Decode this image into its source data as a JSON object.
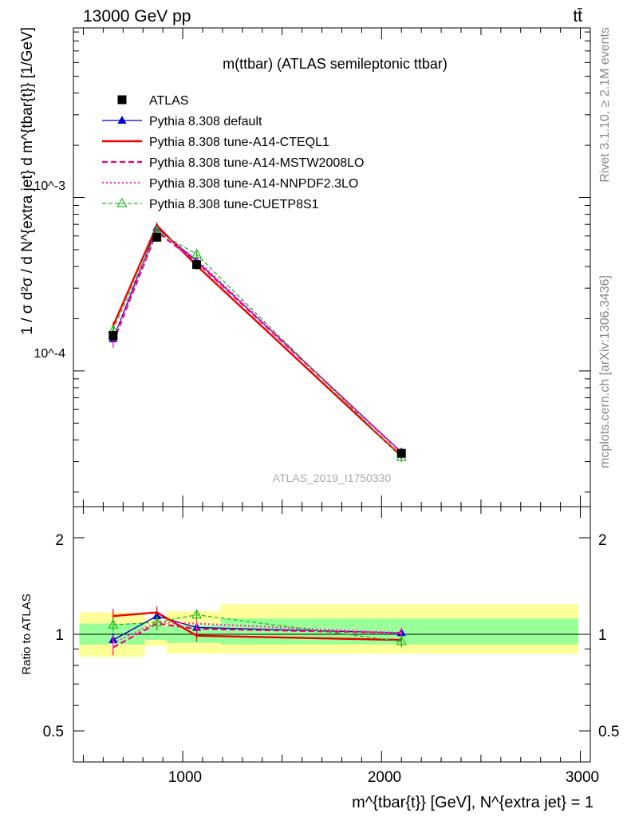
{
  "header": {
    "energy_label": "13000 GeV pp",
    "process_label": "tt̄"
  },
  "main": {
    "title": "m(ttbar) (ATLAS semileptonic ttbar)",
    "analysis_id": "ATLAS_2019_I1750330"
  },
  "side": {
    "rivet_label": "Rivet 3.1.10, ≥ 2.1M events",
    "url_label": "mcplots.cern.ch [arXiv:1306.3436]"
  },
  "axes": {
    "ylabel_main": "1 / σ d²σ / d N^{extra jet} d m^{tbar{t}} [1/GeV]",
    "ylabel_ratio": "Ratio to ATLAS",
    "xlabel": "m^{tbar{t}} [GeV], N^{extra jet} = 1"
  },
  "colors": {
    "data": "#000000",
    "default": "#0000cc",
    "cteql1": "#ee0000",
    "mstw": "#ee0077",
    "nnpdf": "#ff33cc",
    "cuetp8s1": "#22bb22",
    "band_inner": "#99ff99",
    "band_outer": "#ffff99"
  },
  "chart_data": [
    {
      "type": "line",
      "title": "m(ttbar) (ATLAS semileptonic ttbar)",
      "xlabel": "m^{tbar{t}} [GeV], N^{extra jet} = 1",
      "ylabel": "1 / σ d²σ / d N^{extra jet} d m^{tbar{t}} [1/GeV]",
      "xlim": [
        450,
        3050
      ],
      "ylim": [
        1.65e-05,
        0.0095
      ],
      "yscale": "log",
      "x_ticks": [
        1000,
        2000,
        3000
      ],
      "y_tick_labels": [
        "10^-4",
        "10^-3"
      ],
      "legend_position": "top-left",
      "x": [
        650,
        870,
        1070,
        2100
      ],
      "data": {
        "name": "ATLAS",
        "values": [
          0.00016,
          0.00059,
          0.00041,
          3.35e-05
        ],
        "err": [
          1.2e-05,
          3.5e-05,
          2.4e-05,
          2.2e-06
        ]
      },
      "series": [
        {
          "name": "Pythia 8.308 default",
          "values": [
            0.000153,
            0.00067,
            0.00043,
            3.4e-05
          ],
          "err": [
            1e-05,
            3e-05,
            2e-05,
            2e-06
          ]
        },
        {
          "name": "Pythia 8.308 tune-A14-CTEQL1",
          "values": [
            0.000182,
            0.00069,
            0.000405,
            3.22e-05
          ],
          "err": [
            1e-05,
            3e-05,
            2e-05,
            2e-06
          ]
        },
        {
          "name": "Pythia 8.308 tune-A14-MSTW2008LO",
          "values": [
            0.000146,
            0.000635,
            0.000425,
            3.38e-05
          ],
          "err": [
            1e-05,
            3e-05,
            2e-05,
            2e-06
          ]
        },
        {
          "name": "Pythia 8.308 tune-A14-NNPDF2.3LO",
          "values": [
            0.00015,
            0.000645,
            0.00044,
            3.37e-05
          ],
          "err": [
            1e-05,
            3e-05,
            2e-05,
            2e-06
          ]
        },
        {
          "name": "Pythia 8.308 tune-CUETP8S1",
          "values": [
            0.000172,
            0.00064,
            0.00047,
            3.18e-05
          ],
          "err": [
            1e-05,
            3e-05,
            2e-05,
            2e-06
          ]
        }
      ]
    },
    {
      "type": "line",
      "ylabel": "Ratio to ATLAS",
      "xlabel": "m^{tbar{t}} [GeV], N^{extra jet} = 1",
      "xlim": [
        450,
        3050
      ],
      "ylim": [
        0.4,
        2.5
      ],
      "yscale": "log",
      "y_tick_labels": [
        "0.5",
        "1",
        "2"
      ],
      "x": [
        650,
        870,
        1070,
        2100
      ],
      "bands": [
        {
          "x0": 480,
          "x1": 810,
          "inner": [
            0.93,
            1.08
          ],
          "outer": [
            0.85,
            1.17
          ]
        },
        {
          "x0": 810,
          "x1": 920,
          "inner": [
            0.96,
            1.06
          ],
          "outer": [
            0.92,
            1.11
          ]
        },
        {
          "x0": 920,
          "x1": 1190,
          "inner": [
            0.94,
            1.07
          ],
          "outer": [
            0.87,
            1.18
          ]
        },
        {
          "x0": 1190,
          "x1": 2990,
          "inner": [
            0.93,
            1.12
          ],
          "outer": [
            0.87,
            1.24
          ]
        }
      ],
      "series": [
        {
          "name": "Pythia 8.308 default",
          "values": [
            0.96,
            1.14,
            1.05,
            1.01
          ],
          "err": [
            0.05,
            0.05,
            0.04,
            0.04
          ]
        },
        {
          "name": "Pythia 8.308 tune-A14-CTEQL1",
          "values": [
            1.14,
            1.17,
            0.99,
            0.96
          ],
          "err": [
            0.06,
            0.05,
            0.04,
            0.04
          ]
        },
        {
          "name": "Pythia 8.308 tune-A14-MSTW2008LO",
          "values": [
            0.91,
            1.08,
            1.04,
            1.01
          ],
          "err": [
            0.05,
            0.05,
            0.04,
            0.04
          ]
        },
        {
          "name": "Pythia 8.308 tune-A14-NNPDF2.3LO",
          "values": [
            0.94,
            1.09,
            1.08,
            1.01
          ],
          "err": [
            0.05,
            0.05,
            0.04,
            0.04
          ]
        },
        {
          "name": "Pythia 8.308 tune-CUETP8S1",
          "values": [
            1.07,
            1.09,
            1.15,
            0.95
          ],
          "err": [
            0.05,
            0.05,
            0.04,
            0.04
          ]
        }
      ]
    }
  ]
}
